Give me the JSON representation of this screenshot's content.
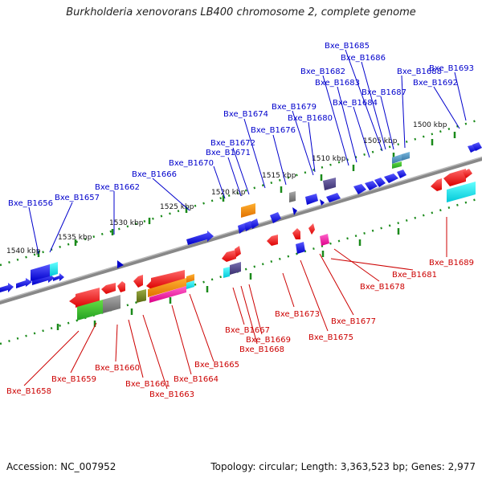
{
  "title": "Burkholderia xenovorans LB400 chromosome 2, complete genome",
  "footer": {
    "accession_label": "Accession:",
    "accession": "NC_007952",
    "topology_label": "Topology:",
    "topology": "circular",
    "length_label": "Length:",
    "length": "3,363,523 bp",
    "genes_label": "Genes:",
    "genes": "2,977"
  },
  "colors": {
    "forward_label": "#0000cc",
    "reverse_label": "#cc0000",
    "backbone": "#888888",
    "tick": "#228822"
  },
  "scale": {
    "unit": "kbp",
    "ticks": [
      {
        "label": "1500 kbp",
        "kbp": 1500
      },
      {
        "label": "1505 kbp",
        "kbp": 1505
      },
      {
        "label": "1510 kbp",
        "kbp": 1510
      },
      {
        "label": "1515 kbp",
        "kbp": 1515
      },
      {
        "label": "1520 kbp",
        "kbp": 1520
      },
      {
        "label": "1525 kbp",
        "kbp": 1525
      },
      {
        "label": "1530 kbp",
        "kbp": 1530
      },
      {
        "label": "1535 kbp",
        "kbp": 1535
      },
      {
        "label": "1540 kbp",
        "kbp": 1540
      }
    ]
  },
  "genes_forward": [
    "Bxe_B1656",
    "Bxe_B1657",
    "Bxe_B1662",
    "Bxe_B1666",
    "Bxe_B1670",
    "Bxe_B1671",
    "Bxe_B1672",
    "Bxe_B1674",
    "Bxe_B1676",
    "Bxe_B1679",
    "Bxe_B1680",
    "Bxe_B1682",
    "Bxe_B1683",
    "Bxe_B1684",
    "Bxe_B1685",
    "Bxe_B1686",
    "Bxe_B1687",
    "Bxe_B1688",
    "Bxe_B1692",
    "Bxe_B1693"
  ],
  "genes_reverse": [
    "Bxe_B1658",
    "Bxe_B1659",
    "Bxe_B1660",
    "Bxe_B1661",
    "Bxe_B1663",
    "Bxe_B1664",
    "Bxe_B1665",
    "Bxe_B1667",
    "Bxe_B1668",
    "Bxe_B1669",
    "Bxe_B1673",
    "Bxe_B1675",
    "Bxe_B1677",
    "Bxe_B1678",
    "Bxe_B1681",
    "Bxe_B1689"
  ]
}
